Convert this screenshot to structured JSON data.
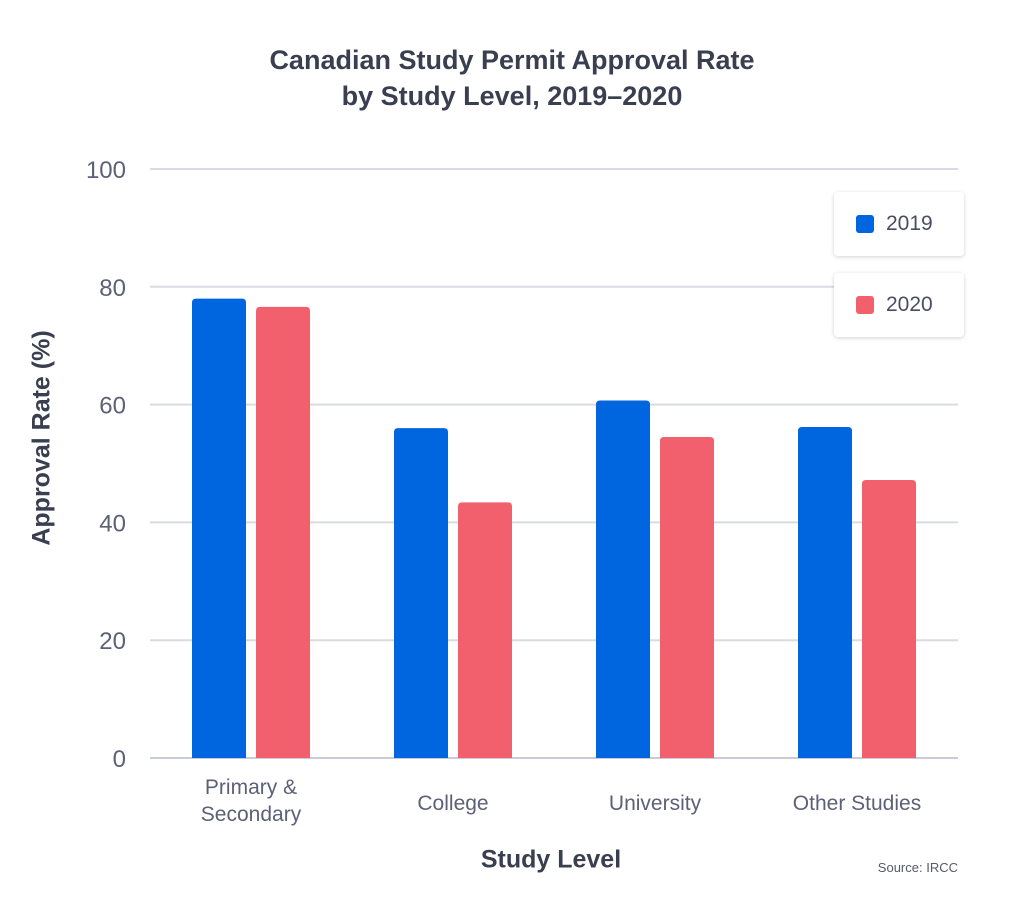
{
  "chart_data": {
    "type": "bar",
    "title_lines": [
      "Canadian Study Permit Approval Rate",
      "by Study Level, 2019–2020"
    ],
    "categories": [
      [
        "Primary &",
        "Secondary"
      ],
      [
        "College"
      ],
      [
        "University"
      ],
      [
        "Other Studies"
      ]
    ],
    "series": [
      {
        "name": "2019",
        "color": "#0066e0",
        "values": [
          78,
          56,
          60.7,
          56.2
        ]
      },
      {
        "name": "2020",
        "color": "#f25f6d",
        "values": [
          76.6,
          43.4,
          54.5,
          47.2
        ]
      }
    ],
    "xlabel": "Study Level",
    "ylabel": "Approval Rate (%)",
    "ylim": [
      0,
      100
    ],
    "yticks": [
      0,
      20,
      40,
      60,
      80,
      100
    ],
    "grid": true,
    "legend_position": "top-right",
    "source": "Source: IRCC"
  },
  "colors": {
    "grid": "#d9dbe3",
    "axis": "#c9ccd6",
    "tick_text": "#5c6175"
  }
}
